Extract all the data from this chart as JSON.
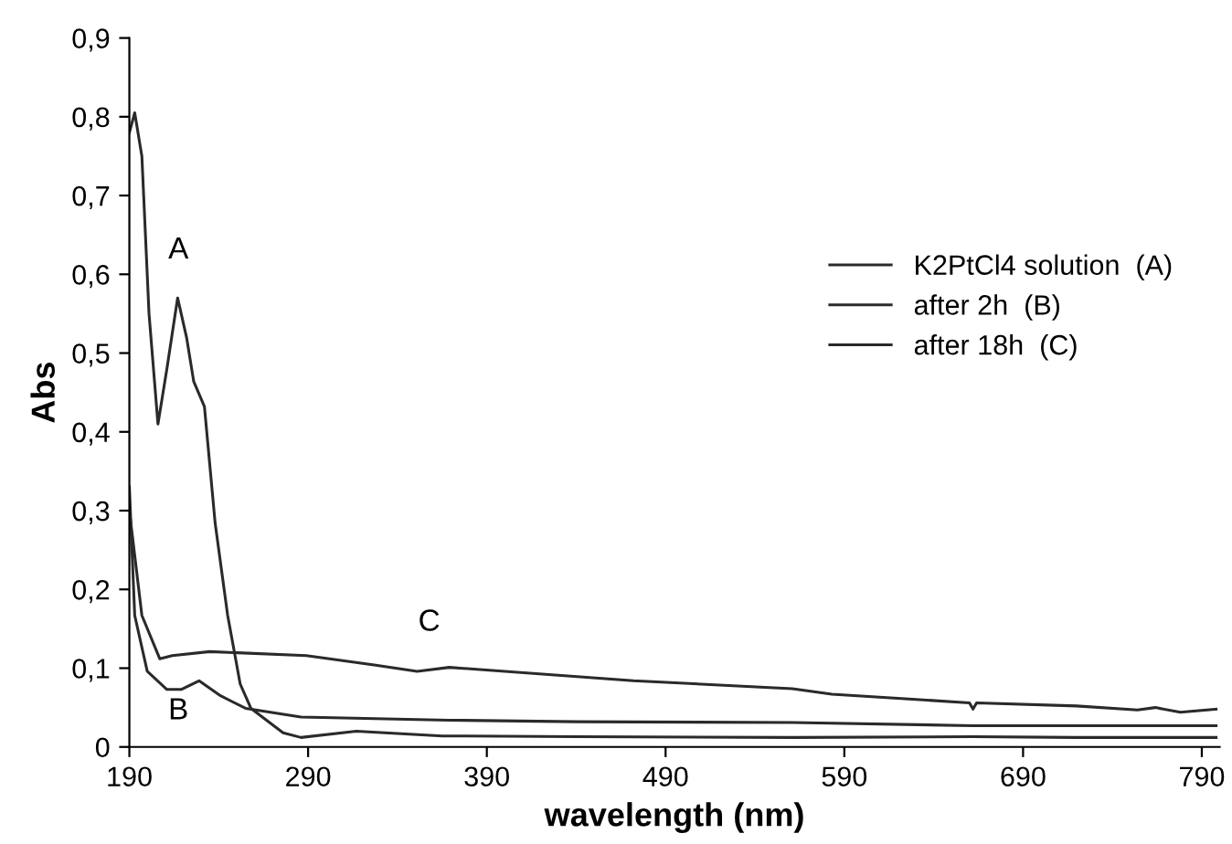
{
  "chart_data": {
    "type": "line",
    "xlabel": "wavelength (nm)",
    "ylabel": "Abs",
    "xlim": [
      190,
      800
    ],
    "ylim": [
      0,
      0.9
    ],
    "xticks": [
      190,
      290,
      390,
      490,
      590,
      690,
      790
    ],
    "yticks": [
      {
        "value": 0,
        "label": "0"
      },
      {
        "value": 0.1,
        "label": "0,1"
      },
      {
        "value": 0.2,
        "label": "0,2"
      },
      {
        "value": 0.3,
        "label": "0,3"
      },
      {
        "value": 0.4,
        "label": "0,4"
      },
      {
        "value": 0.5,
        "label": "0,5"
      },
      {
        "value": 0.6,
        "label": "0,6"
      },
      {
        "value": 0.7,
        "label": "0,7"
      },
      {
        "value": 0.8,
        "label": "0,8"
      },
      {
        "value": 0.9,
        "label": "0,9"
      }
    ],
    "grid": false,
    "legend": "right",
    "marker": "none",
    "line_style": "solid",
    "series": [
      {
        "name": "K2PtCl4 solution  (A)",
        "color": "#2a2a2a",
        "x": [
          190,
          193,
          197,
          201,
          206,
          211,
          217,
          222,
          226,
          232,
          238,
          245,
          252,
          258,
          276,
          286,
          317,
          365,
          440,
          561,
          662,
          720,
          798
        ],
        "values": [
          0.78,
          0.805,
          0.75,
          0.55,
          0.41,
          0.48,
          0.57,
          0.52,
          0.464,
          0.432,
          0.284,
          0.167,
          0.08,
          0.049,
          0.018,
          0.012,
          0.02,
          0.014,
          0.013,
          0.012,
          0.013,
          0.012,
          0.012
        ]
      },
      {
        "name": "after 2h  (B)",
        "color": "#2a2a2a",
        "x": [
          190,
          193,
          200,
          211,
          219,
          229,
          241,
          255,
          286,
          369,
          440,
          561,
          662,
          798
        ],
        "values": [
          0.33,
          0.167,
          0.096,
          0.073,
          0.073,
          0.084,
          0.065,
          0.049,
          0.038,
          0.034,
          0.032,
          0.031,
          0.027,
          0.027
        ]
      },
      {
        "name": "after 18h  (C)",
        "color": "#2a2a2a",
        "x": [
          190,
          197,
          207,
          214,
          235,
          289,
          327,
          351,
          369,
          472,
          561,
          583,
          660,
          662,
          664,
          720,
          754,
          764,
          778,
          798
        ],
        "values": [
          0.3,
          0.167,
          0.112,
          0.116,
          0.121,
          0.116,
          0.104,
          0.096,
          0.101,
          0.084,
          0.074,
          0.067,
          0.056,
          0.048,
          0.056,
          0.052,
          0.047,
          0.05,
          0.044,
          0.048
        ]
      }
    ],
    "annotations": [
      "A",
      "B",
      "C"
    ]
  }
}
